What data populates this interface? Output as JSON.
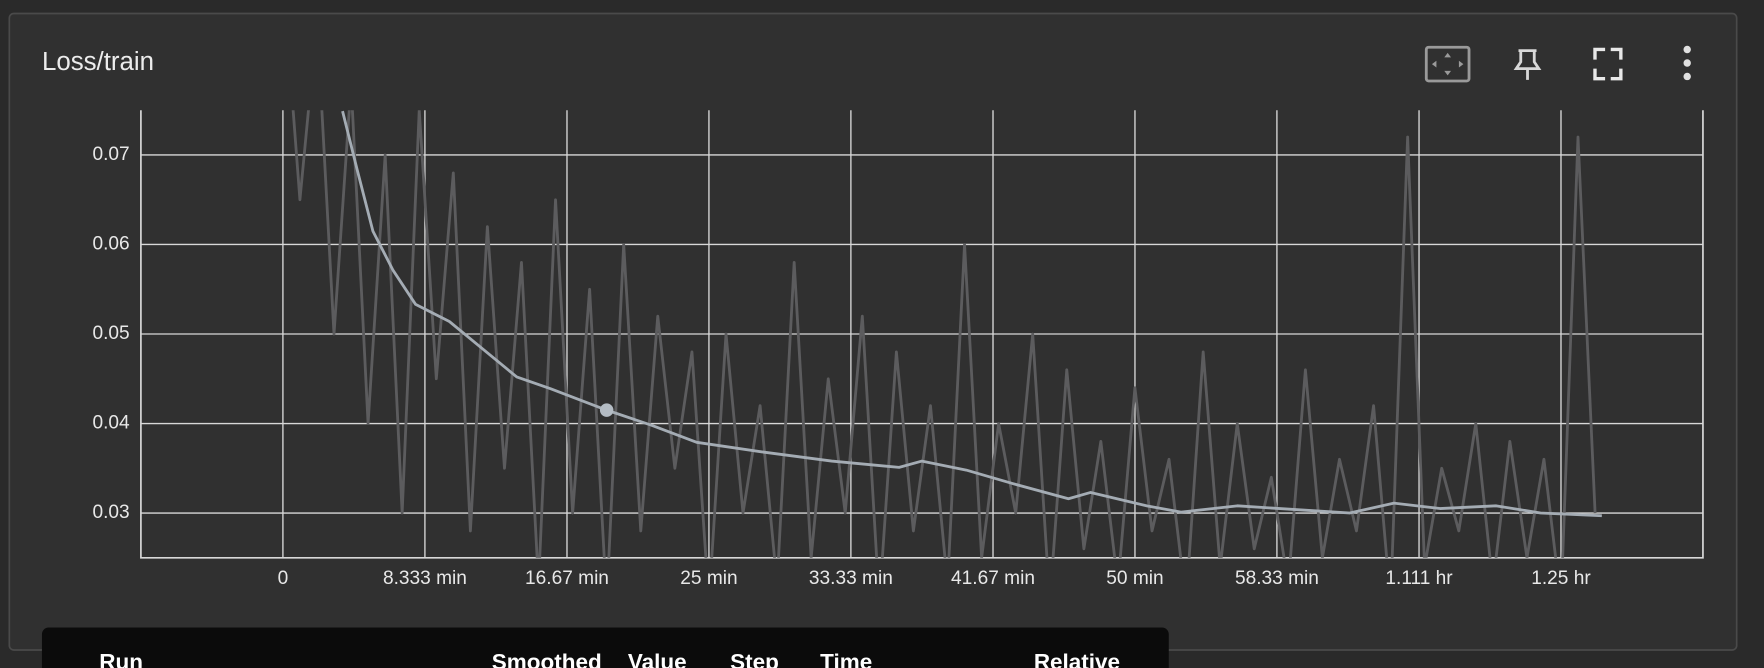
{
  "card": {
    "title": "Loss/train"
  },
  "chart_data": {
    "type": "line",
    "xlim": [
      -8.333,
      83.33
    ],
    "xticks": [
      0,
      {
        "value": 8.333,
        "label": "8.333 min"
      },
      {
        "value": 16.67,
        "label": "16.67 min"
      },
      {
        "value": 25,
        "label": "25 min"
      },
      {
        "value": 33.33,
        "label": "33.33 min"
      },
      {
        "value": 41.67,
        "label": "41.67 min"
      },
      {
        "value": 50,
        "label": "50 min"
      },
      {
        "value": 58.33,
        "label": "58.33 min"
      },
      {
        "value": 66.67,
        "label": "1.111 hr"
      },
      {
        "value": 75,
        "label": "1.25 hr"
      }
    ],
    "ylim": [
      0.025,
      0.075
    ],
    "yticks": [
      0.03,
      0.04,
      0.05,
      0.06,
      0.07
    ],
    "grid": true,
    "series": [
      {
        "color": "#5c5c5e",
        "x": [
          0,
          1,
          2,
          3,
          4,
          5,
          6,
          7,
          8,
          9,
          10,
          11,
          12,
          13,
          14,
          15,
          16,
          17,
          18,
          19,
          20,
          21,
          22,
          23,
          24,
          25,
          26,
          27,
          28,
          29,
          30,
          31,
          32,
          33,
          34,
          35,
          36,
          37,
          38,
          39,
          40,
          41,
          42,
          43,
          44,
          45,
          46,
          47,
          48,
          49,
          50,
          51,
          52,
          53,
          54,
          55,
          56,
          57,
          58,
          59,
          60,
          61,
          62,
          63,
          64,
          65,
          66,
          67,
          68,
          69,
          70,
          71,
          72,
          73,
          74,
          75,
          76,
          77
        ],
        "values": [
          0.09,
          0.065,
          0.085,
          0.05,
          0.078,
          0.04,
          0.07,
          0.03,
          0.075,
          0.045,
          0.068,
          0.028,
          0.062,
          0.035,
          0.058,
          0.022,
          0.065,
          0.03,
          0.055,
          0.02,
          0.06,
          0.028,
          0.052,
          0.035,
          0.048,
          0.02,
          0.05,
          0.03,
          0.042,
          0.022,
          0.058,
          0.025,
          0.045,
          0.03,
          0.052,
          0.02,
          0.048,
          0.028,
          0.042,
          0.022,
          0.06,
          0.025,
          0.04,
          0.03,
          0.05,
          0.02,
          0.046,
          0.026,
          0.038,
          0.022,
          0.044,
          0.028,
          0.036,
          0.02,
          0.048,
          0.024,
          0.04,
          0.026,
          0.034,
          0.022,
          0.046,
          0.025,
          0.036,
          0.028,
          0.042,
          0.02,
          0.072,
          0.024,
          0.035,
          0.028,
          0.04,
          0.022,
          0.038,
          0.025,
          0.036,
          0.02,
          0.072,
          0.03
        ]
      },
      {
        "color": "#a4acb4",
        "x": [
          3.5,
          4.35,
          5.28,
          6.47,
          7.79,
          9.77,
          11.74,
          13.72,
          15.7,
          19.0,
          21.64,
          24.28,
          28.24,
          32.2,
          36.16,
          37.5,
          40.1,
          42.8,
          46.1,
          47.4,
          50.7,
          52.7,
          56.0,
          59.3,
          62.6,
          65.2,
          67.9,
          71.2,
          73.8,
          77.4
        ],
        "values": [
          0.0749,
          0.0684,
          0.0615,
          0.0571,
          0.0533,
          0.0514,
          0.0483,
          0.0452,
          0.0439,
          0.0415,
          0.0398,
          0.0379,
          0.0368,
          0.0358,
          0.0351,
          0.0358,
          0.0348,
          0.0333,
          0.0316,
          0.0323,
          0.0308,
          0.0301,
          0.0308,
          0.0304,
          0.03,
          0.0311,
          0.0305,
          0.0308,
          0.03,
          0.0297
        ]
      }
    ]
  },
  "table": {
    "headers": [
      "Run",
      "Smoothed",
      "Value",
      "Step",
      "Time",
      "Relative"
    ]
  }
}
